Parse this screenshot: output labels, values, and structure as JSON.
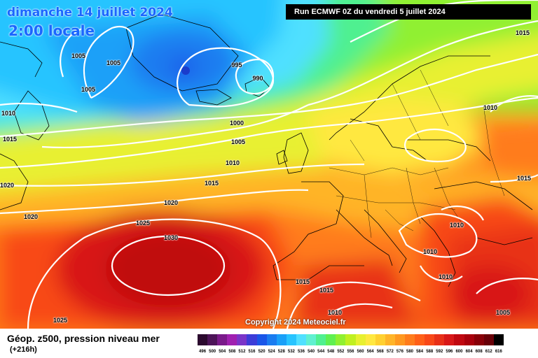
{
  "header": {
    "date": "dimanche 14 juillet 2024",
    "time": "2:00 locale",
    "run": "Run ECMWF 0Z du vendredi 5 juillet 2024",
    "copyright": "Copyright 2024 Meteociel.fr"
  },
  "footer": {
    "title": "Géop. z500, pression niveau mer",
    "subtitle": "(+216h)"
  },
  "scale": {
    "values": [
      "496",
      "500",
      "504",
      "508",
      "512",
      "516",
      "520",
      "524",
      "528",
      "532",
      "536",
      "540",
      "544",
      "548",
      "552",
      "556",
      "560",
      "564",
      "568",
      "572",
      "576",
      "580",
      "584",
      "588",
      "592",
      "596",
      "600",
      "604",
      "608",
      "612",
      "616"
    ],
    "colors": [
      "#2b0a2e",
      "#4d1458",
      "#7a1a8a",
      "#a020b0",
      "#7a34c8",
      "#3c3cd8",
      "#1a56e8",
      "#1a7cf0",
      "#1aa0f8",
      "#28c4ff",
      "#50e0ff",
      "#60f0d0",
      "#50f090",
      "#60f050",
      "#90f030",
      "#c0f020",
      "#e8f030",
      "#ffe840",
      "#ffd030",
      "#ffb428",
      "#ff9820",
      "#ff7c1c",
      "#ff6018",
      "#f84818",
      "#e83018",
      "#d81818",
      "#c00810",
      "#a8000c",
      "#880008",
      "#680008",
      "#000000"
    ]
  },
  "isobars": [
    {
      "id": "iso-1005-a",
      "text": "1005"
    },
    {
      "id": "iso-1005-b",
      "text": "1005"
    },
    {
      "id": "iso-1005-c",
      "text": "1005"
    },
    {
      "id": "iso-995",
      "text": "995"
    },
    {
      "id": "iso-990",
      "text": "990"
    },
    {
      "id": "iso-1000",
      "text": "1000"
    },
    {
      "id": "iso-1005-d",
      "text": "1005"
    },
    {
      "id": "iso-1010-a",
      "text": "1010"
    },
    {
      "id": "iso-1015-a",
      "text": "1015"
    },
    {
      "id": "iso-1020-a",
      "text": "1020"
    },
    {
      "id": "iso-1020-b",
      "text": "1020"
    },
    {
      "id": "iso-1010-b",
      "text": "1010"
    },
    {
      "id": "iso-1015-b",
      "text": "1015"
    },
    {
      "id": "iso-1020-c",
      "text": "1020"
    },
    {
      "id": "iso-1025-a",
      "text": "1025"
    },
    {
      "id": "iso-1030",
      "text": "1030"
    },
    {
      "id": "iso-1025-b",
      "text": "1025"
    },
    {
      "id": "iso-1015-c",
      "text": "1015"
    },
    {
      "id": "iso-1015-d",
      "text": "1015"
    },
    {
      "id": "iso-1010-c",
      "text": "1010"
    },
    {
      "id": "iso-1015-e",
      "text": "1015"
    },
    {
      "id": "iso-1010-d",
      "text": "1010"
    },
    {
      "id": "iso-1015-f",
      "text": "1015"
    },
    {
      "id": "iso-1010-e",
      "text": "1010"
    },
    {
      "id": "iso-1010-f",
      "text": "1010"
    },
    {
      "id": "iso-1010-g",
      "text": "1010"
    },
    {
      "id": "iso-1005-e",
      "text": "1005"
    }
  ]
}
